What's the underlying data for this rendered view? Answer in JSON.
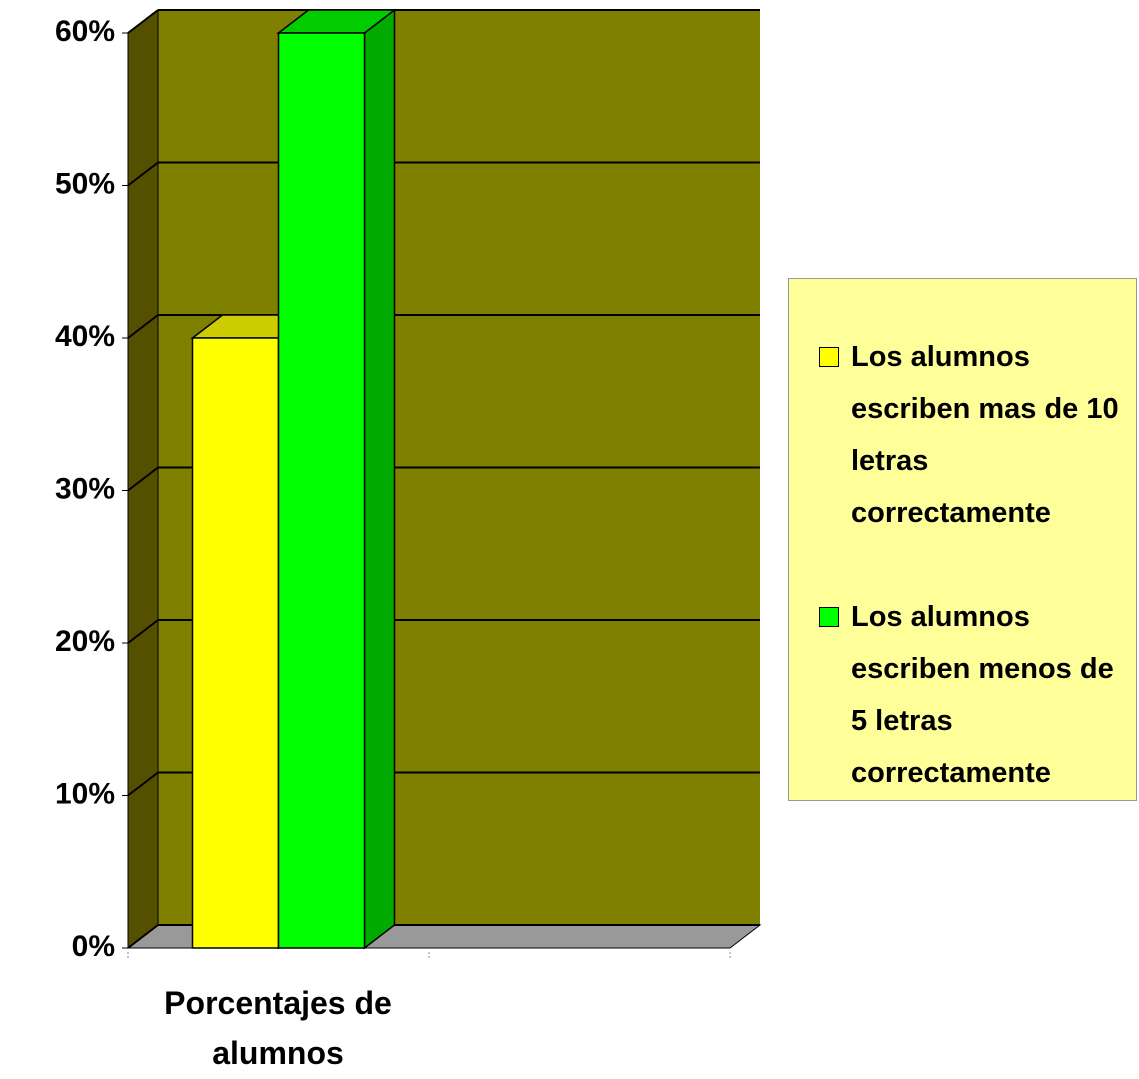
{
  "chart_data": {
    "type": "bar3d",
    "categories": [
      "Porcentajes de alumnos",
      null
    ],
    "series": [
      {
        "name": "Los alumnos escriben mas de 10 letras correctamente",
        "color": "#ffff00",
        "values": [
          40,
          null
        ]
      },
      {
        "name": "Los alumnos escriben menos de 5 letras correctamente",
        "color": "#00ff00",
        "values": [
          60,
          null
        ]
      }
    ],
    "ylim": [
      0,
      60
    ],
    "yticks": [
      {
        "value": 0,
        "label": "0%"
      },
      {
        "value": 10,
        "label": "10%"
      },
      {
        "value": 20,
        "label": "20%"
      },
      {
        "value": 30,
        "label": "30%"
      },
      {
        "value": 40,
        "label": "40%"
      },
      {
        "value": 50,
        "label": "50%"
      },
      {
        "value": 60,
        "label": "60%"
      }
    ],
    "grid": true,
    "legend": "right"
  }
}
